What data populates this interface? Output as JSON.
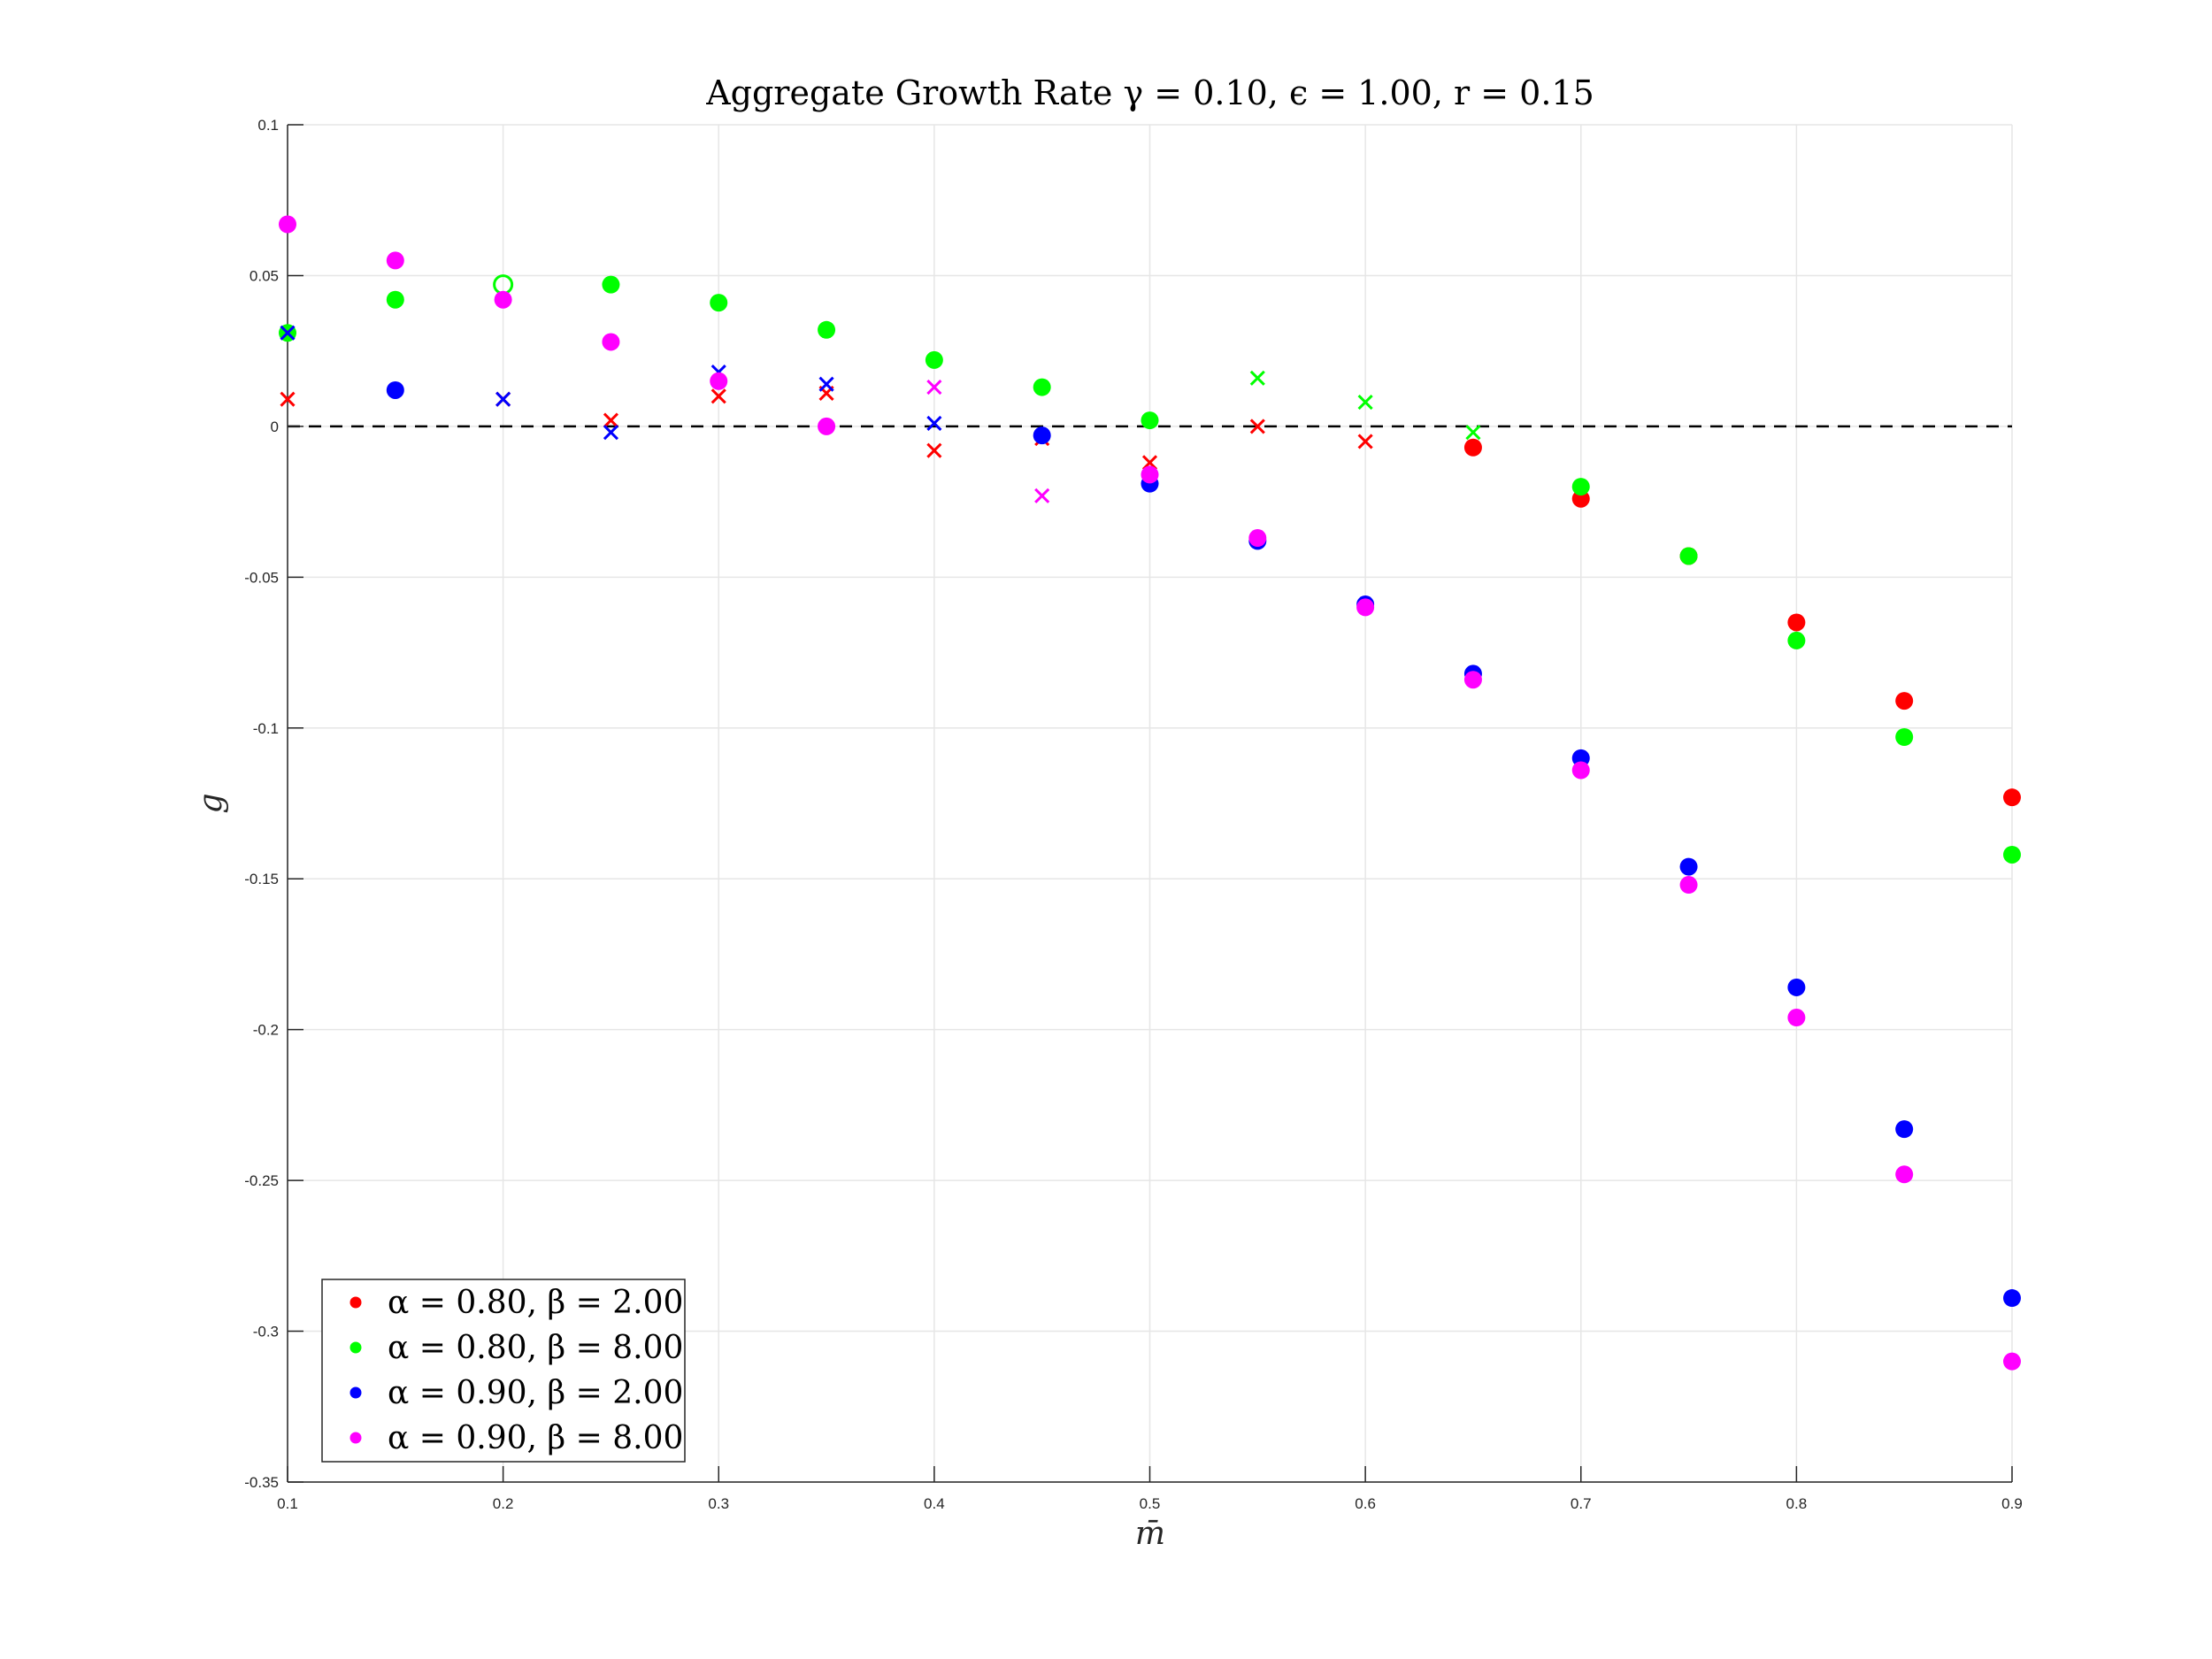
{
  "chart_data": {
    "type": "scatter",
    "title": "Aggregate Growth Rate γ = 0.10, ϵ = 1.00, r = 0.15",
    "xlabel": "m̄",
    "ylabel": "g",
    "xlim": [
      0.1,
      0.9
    ],
    "ylim": [
      -0.35,
      0.1
    ],
    "xticks": [
      "0.1",
      "0.2",
      "0.3",
      "0.4",
      "0.5",
      "0.6",
      "0.7",
      "0.8",
      "0.9"
    ],
    "yticks": [
      "0.1",
      "0.05",
      "0",
      "-0.05",
      "-0.1",
      "-0.15",
      "-0.2",
      "-0.25",
      "-0.3",
      "-0.35"
    ],
    "grid": true,
    "reference_line": {
      "y": 0,
      "style": "dashed",
      "color": "#000000"
    },
    "legend_position": "bottom-left",
    "series": [
      {
        "name": "α = 0.80, β = 2.00",
        "color": "#ff0000",
        "filled": [
          [
            0.65,
            -0.007
          ],
          [
            0.7,
            -0.024
          ],
          [
            0.75,
            -0.043
          ],
          [
            0.8,
            -0.065
          ],
          [
            0.85,
            -0.091
          ],
          [
            0.9,
            -0.123
          ]
        ],
        "crosses": [
          [
            0.1,
            0.009
          ],
          [
            0.2,
            0.009
          ],
          [
            0.25,
            0.002
          ],
          [
            0.3,
            0.01
          ],
          [
            0.35,
            0.011
          ],
          [
            0.4,
            -0.008
          ],
          [
            0.45,
            -0.004
          ],
          [
            0.5,
            -0.012
          ],
          [
            0.55,
            0.0
          ],
          [
            0.6,
            -0.005
          ]
        ],
        "hollow": []
      },
      {
        "name": "α = 0.80, β = 8.00",
        "color": "#00ff00",
        "filled": [
          [
            0.1,
            0.031
          ],
          [
            0.15,
            0.042
          ],
          [
            0.25,
            0.047
          ],
          [
            0.3,
            0.041
          ],
          [
            0.35,
            0.032
          ],
          [
            0.4,
            0.022
          ],
          [
            0.45,
            0.013
          ],
          [
            0.5,
            0.002
          ],
          [
            0.7,
            -0.02
          ],
          [
            0.75,
            -0.043
          ],
          [
            0.8,
            -0.071
          ],
          [
            0.85,
            -0.103
          ],
          [
            0.9,
            -0.142
          ]
        ],
        "crosses": [
          [
            0.55,
            0.016
          ],
          [
            0.6,
            0.008
          ],
          [
            0.65,
            -0.002
          ]
        ],
        "hollow": [
          [
            0.2,
            0.047
          ]
        ]
      },
      {
        "name": "α = 0.90, β = 2.00",
        "color": "#0000ff",
        "filled": [
          [
            0.15,
            0.012
          ],
          [
            0.45,
            -0.003
          ],
          [
            0.5,
            -0.019
          ],
          [
            0.55,
            -0.038
          ],
          [
            0.6,
            -0.059
          ],
          [
            0.65,
            -0.082
          ],
          [
            0.7,
            -0.11
          ],
          [
            0.75,
            -0.146
          ],
          [
            0.8,
            -0.186
          ],
          [
            0.85,
            -0.233
          ],
          [
            0.9,
            -0.289
          ]
        ],
        "crosses": [
          [
            0.1,
            0.031
          ],
          [
            0.2,
            0.009
          ],
          [
            0.25,
            -0.002
          ],
          [
            0.3,
            0.018
          ],
          [
            0.35,
            0.014
          ],
          [
            0.4,
            0.001
          ]
        ],
        "hollow": []
      },
      {
        "name": "α = 0.90, β = 8.00",
        "color": "#ff00ff",
        "filled": [
          [
            0.1,
            0.067
          ],
          [
            0.15,
            0.055
          ],
          [
            0.2,
            0.042
          ],
          [
            0.25,
            0.028
          ],
          [
            0.3,
            0.015
          ],
          [
            0.35,
            0.0
          ],
          [
            0.5,
            -0.016
          ],
          [
            0.55,
            -0.037
          ],
          [
            0.6,
            -0.06
          ],
          [
            0.65,
            -0.084
          ],
          [
            0.7,
            -0.114
          ],
          [
            0.75,
            -0.152
          ],
          [
            0.8,
            -0.196
          ],
          [
            0.85,
            -0.248
          ],
          [
            0.9,
            -0.31
          ]
        ],
        "crosses": [
          [
            0.4,
            0.013
          ],
          [
            0.45,
            -0.023
          ]
        ],
        "hollow": []
      }
    ]
  }
}
